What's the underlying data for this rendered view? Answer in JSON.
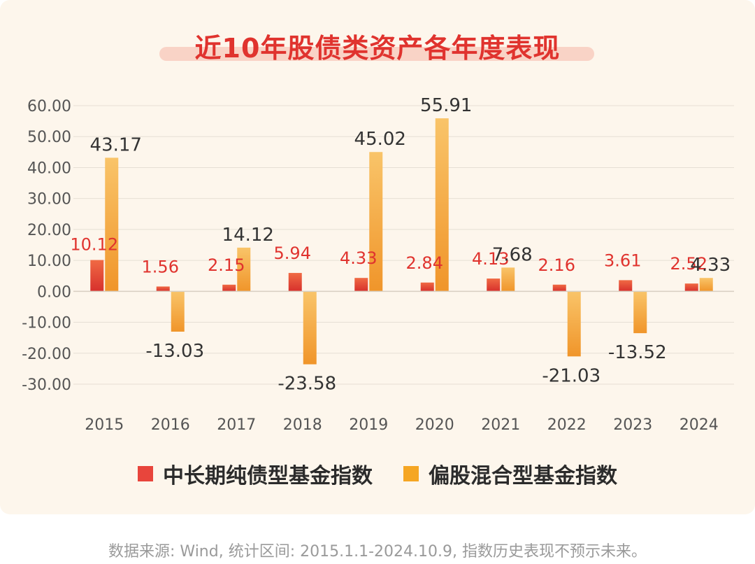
{
  "title": "近10年股债类资产各年度表现",
  "footnote": "数据来源: Wind, 统计区间: 2015.1.1-2024.10.9, 指数历史表现不预示未来。",
  "colors": {
    "series_bond": "#e8453c",
    "series_equity": "#f5a623",
    "label_bond": "#e0332e",
    "label_equity": "#333333",
    "grid": "#e6dfd4",
    "axis_text": "#555555"
  },
  "chart_data": {
    "type": "bar",
    "categories": [
      "2015",
      "2016",
      "2017",
      "2018",
      "2019",
      "2020",
      "2021",
      "2022",
      "2023",
      "2024"
    ],
    "series": [
      {
        "name": "中长期纯债型基金指数",
        "values": [
          10.12,
          1.56,
          2.15,
          5.94,
          4.33,
          2.84,
          4.13,
          2.16,
          3.61,
          2.52
        ]
      },
      {
        "name": "偏股混合型基金指数",
        "values": [
          43.17,
          -13.03,
          14.12,
          -23.58,
          45.02,
          55.91,
          7.68,
          -21.03,
          -13.52,
          4.33
        ]
      }
    ],
    "value_labels": [
      [
        "10.12",
        "1.56",
        "2.15",
        "5.94",
        "4.33",
        "2.84",
        "4.13",
        "2.16",
        "3.61",
        "2.52"
      ],
      [
        "43.17",
        "-13.03",
        "14.12",
        "-23.58",
        "45.02",
        "55.91",
        "7.68",
        "-21.03",
        "-13.52",
        "4.33"
      ]
    ],
    "yticks": [
      "60.00",
      "50.00",
      "40.00",
      "30.00",
      "20.00",
      "10.00",
      "0.00",
      "-10.00",
      "-20.00",
      "-30.00"
    ],
    "ylim": [
      -30,
      60
    ],
    "grid": true,
    "legend_position": "bottom"
  }
}
